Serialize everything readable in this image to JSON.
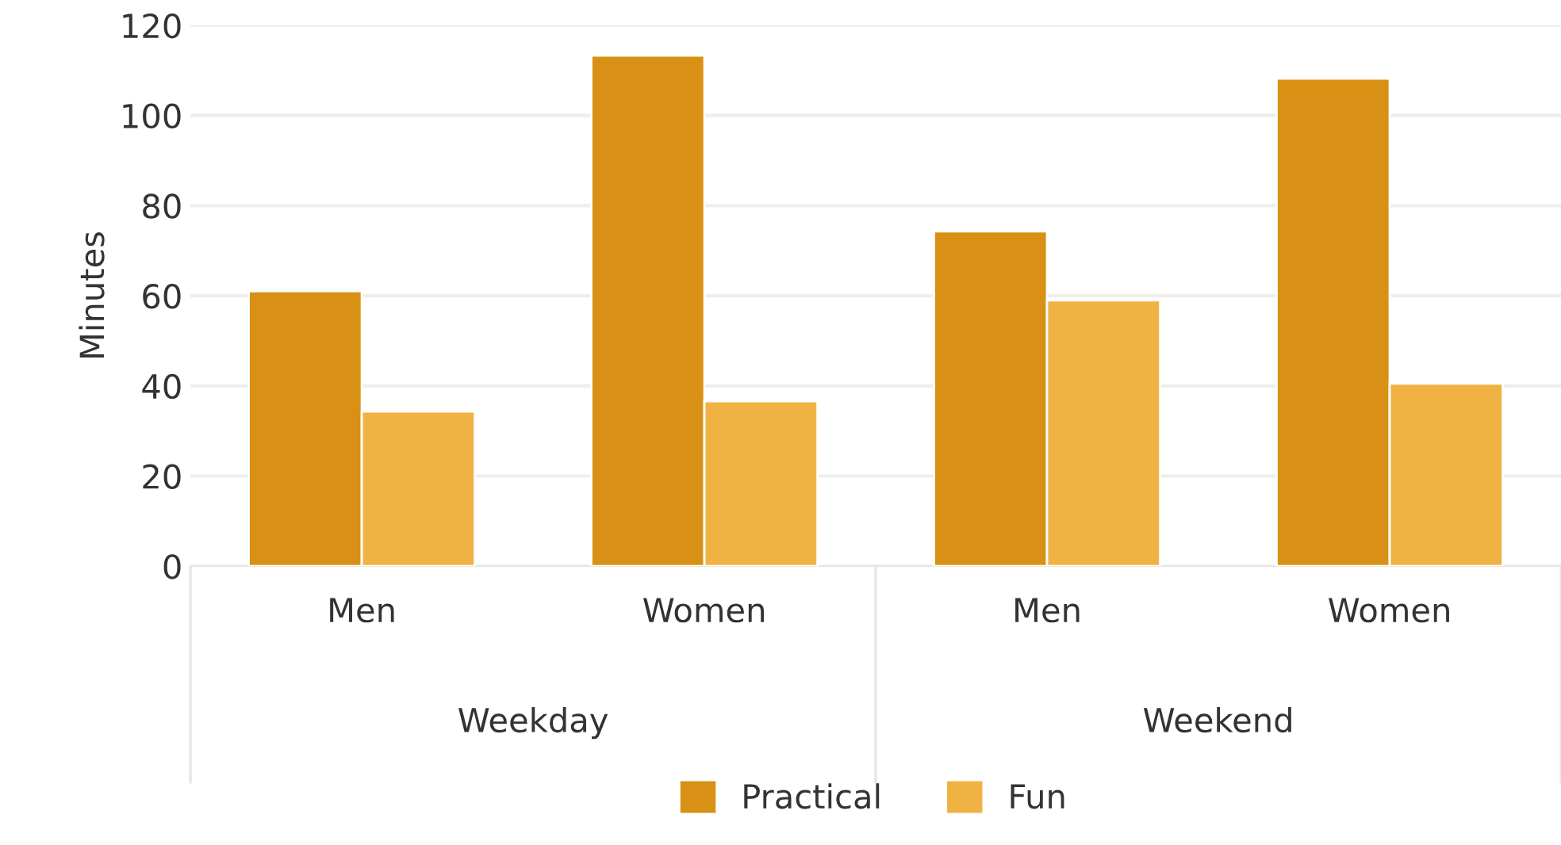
{
  "chart_data": {
    "type": "bar",
    "ylabel": "Minutes",
    "categories": [
      "Men",
      "Women",
      "Men",
      "Women"
    ],
    "annotations": [
      "Weekday",
      "Weekend"
    ],
    "series": [
      {
        "name": "Practical",
        "color": "#d89114",
        "values": [
          61,
          113.3,
          74.3,
          108.2
        ]
      },
      {
        "name": "Fun",
        "color": "#f0b343",
        "values": [
          34.3,
          36.6,
          59,
          40.5
        ]
      }
    ],
    "ylim": [
      0,
      120
    ],
    "yticks": [
      0,
      20,
      40,
      60,
      80,
      100,
      120
    ],
    "grid": "y",
    "legend": "bottom"
  }
}
